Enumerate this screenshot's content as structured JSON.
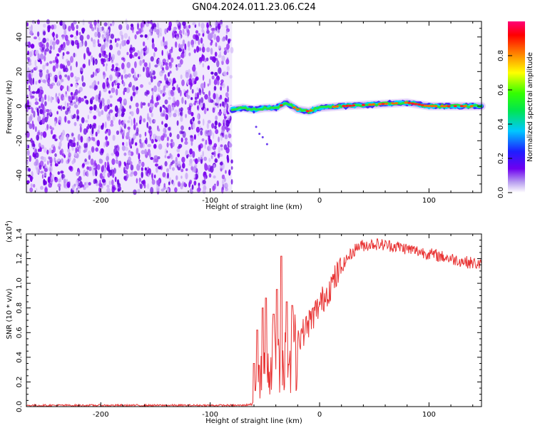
{
  "title": "GN04.2024.011.23.06.C24",
  "spectrogram": {
    "type": "heatmap",
    "xlabel": "Height of straight line (km)",
    "ylabel": "Frequency (Hz)",
    "xlim": [
      -268,
      148
    ],
    "ylim": [
      -50,
      49
    ],
    "xticks": [
      -200,
      -100,
      0,
      100
    ],
    "yticks": [
      -40,
      -20,
      0,
      20,
      40
    ],
    "noise_region": [
      -268,
      -80
    ],
    "signal_track": [
      {
        "x": -80,
        "y": -2
      },
      {
        "x": -70,
        "y": -1
      },
      {
        "x": -60,
        "y": -2
      },
      {
        "x": -50,
        "y": -1
      },
      {
        "x": -40,
        "y": -1
      },
      {
        "x": -30,
        "y": 2
      },
      {
        "x": -20,
        "y": -2
      },
      {
        "x": -10,
        "y": -3
      },
      {
        "x": 0,
        "y": -1
      },
      {
        "x": 20,
        "y": 0
      },
      {
        "x": 50,
        "y": 1
      },
      {
        "x": 80,
        "y": 2
      },
      {
        "x": 100,
        "y": 0
      },
      {
        "x": 148,
        "y": 0
      }
    ],
    "colorbar": {
      "label": "Normalized spectral amplitude",
      "range": [
        0,
        1
      ],
      "ticks": [
        "0.0",
        "0.2",
        "0.4",
        "0.6",
        "0.8"
      ]
    }
  },
  "snr": {
    "type": "line",
    "xlabel": "Height of straight line (km)",
    "ylabel": "SNR (10 * v/v)",
    "exponent": "(x10",
    "exponent_power": "4",
    "exponent_close": ")",
    "xlim": [
      -268,
      148
    ],
    "ylim": [
      0,
      1.4
    ],
    "xticks": [
      -200,
      -100,
      0,
      100
    ],
    "yticks": [
      "0.0",
      "0.2",
      "0.4",
      "0.6",
      "0.8",
      "1.0",
      "1.2",
      "1.4"
    ],
    "line_color": "#e83232",
    "envelope": [
      {
        "x": -268,
        "y": 0.01
      },
      {
        "x": -70,
        "y": 0.01
      },
      {
        "x": -62,
        "y": 0.02
      },
      {
        "x": -55,
        "y": 0.25
      },
      {
        "x": -45,
        "y": 0.45
      },
      {
        "x": -35,
        "y": 0.5
      },
      {
        "x": -25,
        "y": 0.52
      },
      {
        "x": -15,
        "y": 0.6
      },
      {
        "x": -5,
        "y": 0.75
      },
      {
        "x": 5,
        "y": 0.9
      },
      {
        "x": 15,
        "y": 1.05
      },
      {
        "x": 25,
        "y": 1.2
      },
      {
        "x": 35,
        "y": 1.3
      },
      {
        "x": 50,
        "y": 1.32
      },
      {
        "x": 70,
        "y": 1.3
      },
      {
        "x": 90,
        "y": 1.26
      },
      {
        "x": 110,
        "y": 1.22
      },
      {
        "x": 130,
        "y": 1.18
      },
      {
        "x": 148,
        "y": 1.15
      }
    ],
    "spikes": [
      {
        "x": -60,
        "y": 0.35
      },
      {
        "x": -57,
        "y": 0.62
      },
      {
        "x": -52,
        "y": 0.8
      },
      {
        "x": -49,
        "y": 0.88
      },
      {
        "x": -42,
        "y": 0.75
      },
      {
        "x": -39,
        "y": 0.95
      },
      {
        "x": -35,
        "y": 1.22
      },
      {
        "x": -30,
        "y": 0.85
      },
      {
        "x": -25,
        "y": 0.82
      }
    ]
  }
}
